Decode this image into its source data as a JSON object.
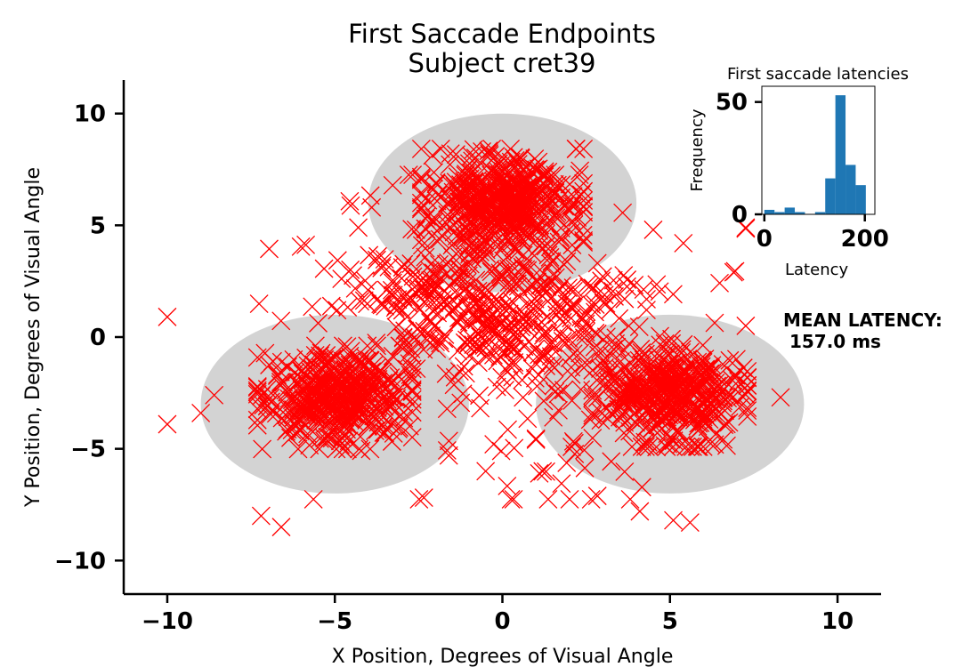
{
  "chart_data": [
    {
      "type": "scatter",
      "title": "First Saccade Endpoints\nSubject cret39",
      "xlabel": "X Position, Degrees of Visual Angle",
      "ylabel": "Y Position, Degrees of Visual Angle",
      "xlim": [
        -11.3,
        11.3
      ],
      "ylim": [
        -11.5,
        11.5
      ],
      "xticks": [
        -10,
        -5,
        0,
        5,
        10
      ],
      "yticks": [
        -10,
        -5,
        0,
        5,
        10
      ],
      "xtick_labels": [
        "−10",
        "−5",
        "0",
        "5",
        "10"
      ],
      "ytick_labels": [
        "−10",
        "−5",
        "0",
        "5",
        "10"
      ],
      "target_regions": [
        {
          "cx": 0,
          "cy": 6,
          "rx": 4,
          "ry": 4,
          "color": "#d3d3d3"
        },
        {
          "cx": -5,
          "cy": -3,
          "rx": 4,
          "ry": 4,
          "color": "#d3d3d3"
        },
        {
          "cx": 5,
          "cy": -3,
          "rx": 4,
          "ry": 4,
          "color": "#d3d3d3"
        }
      ],
      "clusters": [
        {
          "cx": 0,
          "cy": 6,
          "spread": 1.1,
          "count": 500
        },
        {
          "cx": -5,
          "cy": -2.7,
          "spread": 1.05,
          "count": 450
        },
        {
          "cx": 5,
          "cy": -2.6,
          "spread": 1.05,
          "count": 450
        },
        {
          "cx": -1.5,
          "cy": 1.5,
          "spread": 1.5,
          "count": 160
        },
        {
          "cx": 1.5,
          "cy": 0.8,
          "spread": 1.6,
          "count": 160
        },
        {
          "cx": 0,
          "cy": 0,
          "spread": 3.3,
          "count": 260
        }
      ],
      "outliers": [
        {
          "x": -10,
          "y": 0.9
        },
        {
          "x": -10,
          "y": -3.9
        },
        {
          "x": -7.2,
          "y": -8.0
        },
        {
          "x": -6.6,
          "y": -8.5
        },
        {
          "x": 5.4,
          "y": 4.2
        },
        {
          "x": 6.9,
          "y": 2.9
        },
        {
          "x": 5.1,
          "y": -8.2
        },
        {
          "x": 5.6,
          "y": -8.3
        },
        {
          "x": 4.1,
          "y": -7.8
        },
        {
          "x": 8.3,
          "y": -2.7
        },
        {
          "x": -8.6,
          "y": -2.6
        },
        {
          "x": -9.0,
          "y": -3.4
        },
        {
          "x": 4.5,
          "y": 4.8
        },
        {
          "x": 1.1,
          "y": -6.1
        },
        {
          "x": -0.5,
          "y": -6.0
        },
        {
          "x": -1.6,
          "y": -5.3
        },
        {
          "x": -3.9,
          "y": 5.8
        },
        {
          "x": -4.3,
          "y": 4.9
        }
      ],
      "marker": "x",
      "marker_color": "#ff0000",
      "legend_entries": [
        "Latency"
      ],
      "annotation": "MEAN LATENCY:\n 157.0 ms"
    },
    {
      "type": "bar",
      "title": "First saccade latencies",
      "xlabel": "",
      "ylabel": "Frequency",
      "xlim": [
        -5,
        220
      ],
      "ylim": [
        0,
        57
      ],
      "xticks": [
        0,
        200
      ],
      "yticks": [
        0,
        50
      ],
      "bin_edges": [
        0,
        20.2,
        40.4,
        60.6,
        80.8,
        101,
        121.2,
        141.4,
        161.6,
        181.8,
        202
      ],
      "values": [
        2,
        1,
        3,
        1,
        0,
        1,
        16,
        53,
        22,
        13
      ],
      "bar_color": "#1f77b4"
    }
  ]
}
